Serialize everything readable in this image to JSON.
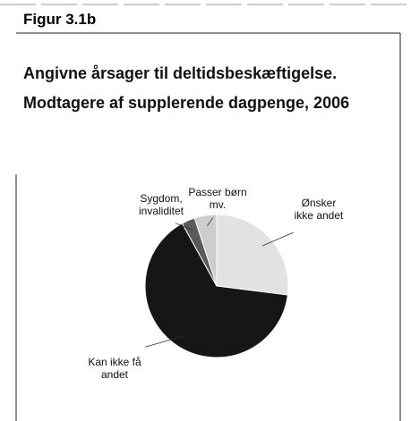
{
  "figure_label": "Figur 3.1b",
  "chart_data": {
    "type": "pie",
    "title": "Angivne årsager til deltidsbeskæftigelse. Modtagere af supplerende dagpenge, 2006",
    "categories": [
      "Ønsker ikke andet",
      "Kan ikke få andet",
      "Sygdom, invaliditet",
      "Passer børn mv."
    ],
    "values": [
      27,
      65,
      3,
      5
    ],
    "colors": [
      "#e2e2e2",
      "#161616",
      "#5a5a5a",
      "#cdcdcd"
    ]
  }
}
